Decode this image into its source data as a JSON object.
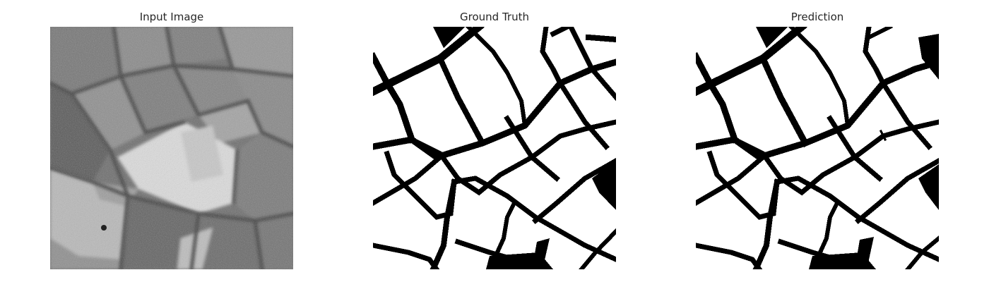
{
  "figure": {
    "panels": [
      {
        "title": "Input Image"
      },
      {
        "title": "Ground Truth"
      },
      {
        "title": "Prediction"
      }
    ]
  }
}
